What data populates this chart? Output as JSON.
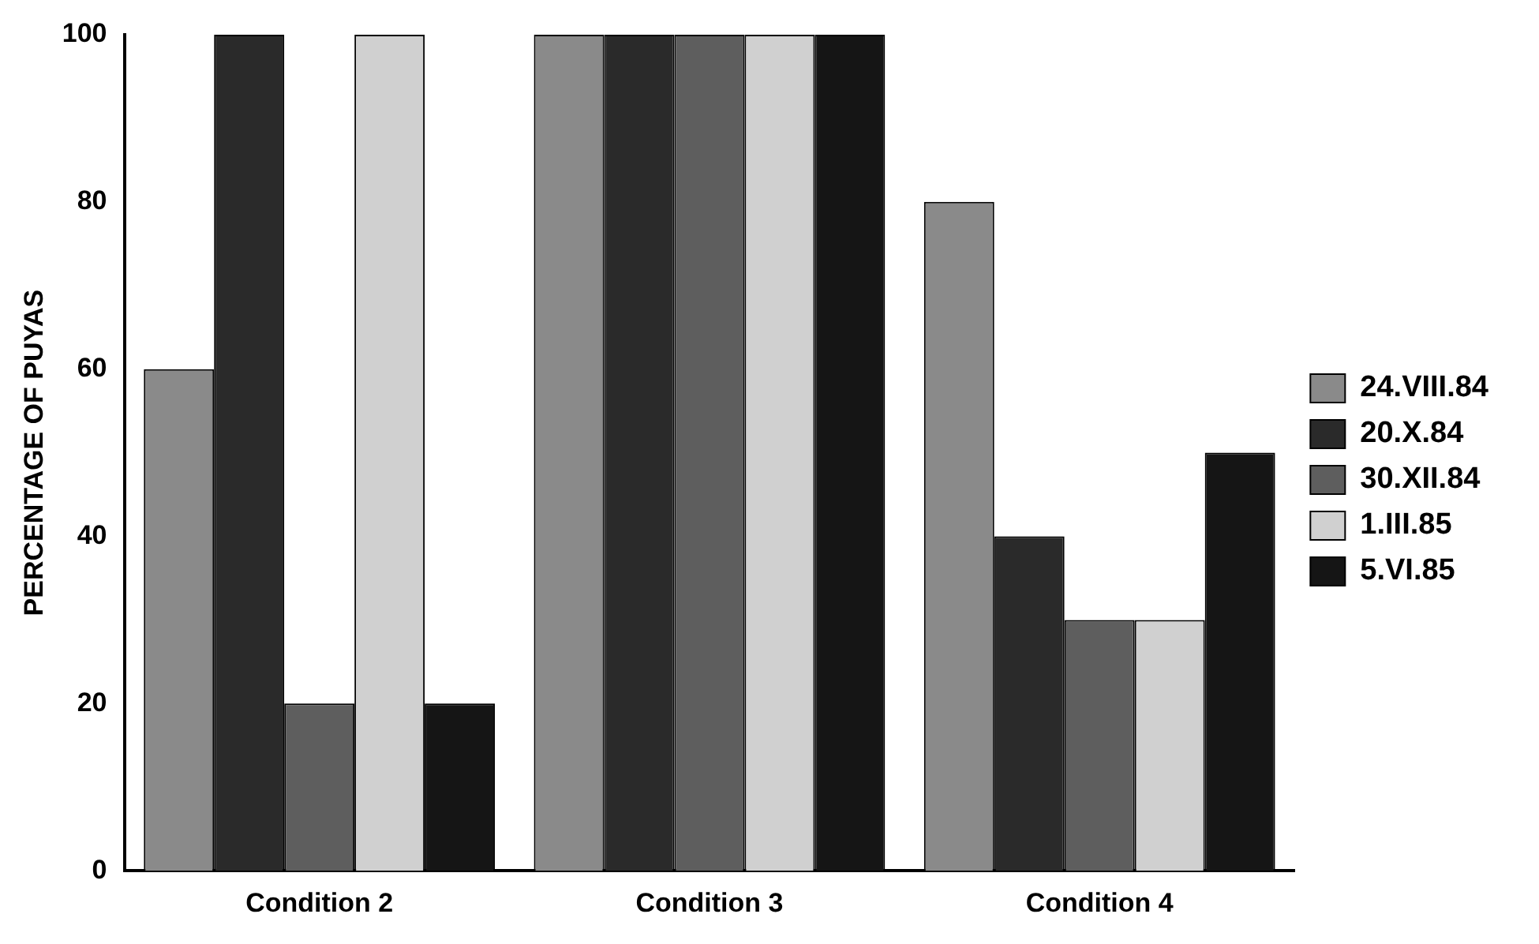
{
  "chart_data": {
    "type": "bar",
    "categories": [
      "Condition 2",
      "Condition 3",
      "Condition 4"
    ],
    "series": [
      {
        "name": "24.VIII.84",
        "color": "#8a8a8a",
        "values": [
          60,
          100,
          80
        ]
      },
      {
        "name": "20.X.84",
        "color": "#2a2a2a",
        "values": [
          100,
          100,
          40
        ]
      },
      {
        "name": "30.XII.84",
        "color": "#5e5e5e",
        "values": [
          20,
          100,
          30
        ]
      },
      {
        "name": "1.III.85",
        "color": "#d0d0d0",
        "values": [
          100,
          100,
          30
        ]
      },
      {
        "name": "5.VI.85",
        "color": "#151515",
        "values": [
          20,
          100,
          50
        ]
      }
    ],
    "ylabel": "PERCENTAGE OF PUYAS",
    "ylim": [
      0,
      100
    ],
    "yticks": [
      0,
      20,
      40,
      60,
      80,
      100
    ],
    "grid": false,
    "legend": "right"
  }
}
